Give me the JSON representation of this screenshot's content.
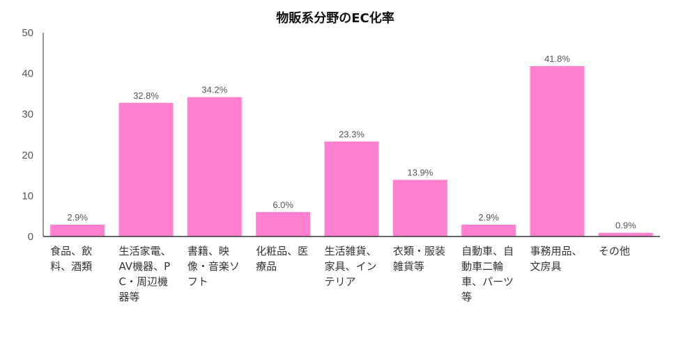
{
  "chart_data": {
    "type": "bar",
    "title": "物販系分野のEC化率",
    "categories": [
      "食品、飲料、酒類",
      "生活家電、AV機器、PC・周辺機器等",
      "書籍、映像・音楽ソフト",
      "化粧品、医療品",
      "生活雑貨、家具、インテリア",
      "衣類・服装雑貨等",
      "自動車、自動車二輪車、パーツ等",
      "事務用品、文房具",
      "その他"
    ],
    "values": [
      2.9,
      32.8,
      34.2,
      6.0,
      23.3,
      13.9,
      2.9,
      41.8,
      0.9
    ],
    "value_labels": [
      "2.9%",
      "32.8%",
      "34.2%",
      "6.0%",
      "23.3%",
      "13.9%",
      "2.9%",
      "41.8%",
      "0.9%"
    ],
    "y_ticks": [
      "0",
      "10",
      "20",
      "30",
      "40",
      "50"
    ],
    "ylim": [
      0,
      50
    ],
    "xlabel": "",
    "ylabel": "",
    "grid": false,
    "legend": "none",
    "bar_color": "#ff7fd0",
    "axis_color": "#333333"
  }
}
